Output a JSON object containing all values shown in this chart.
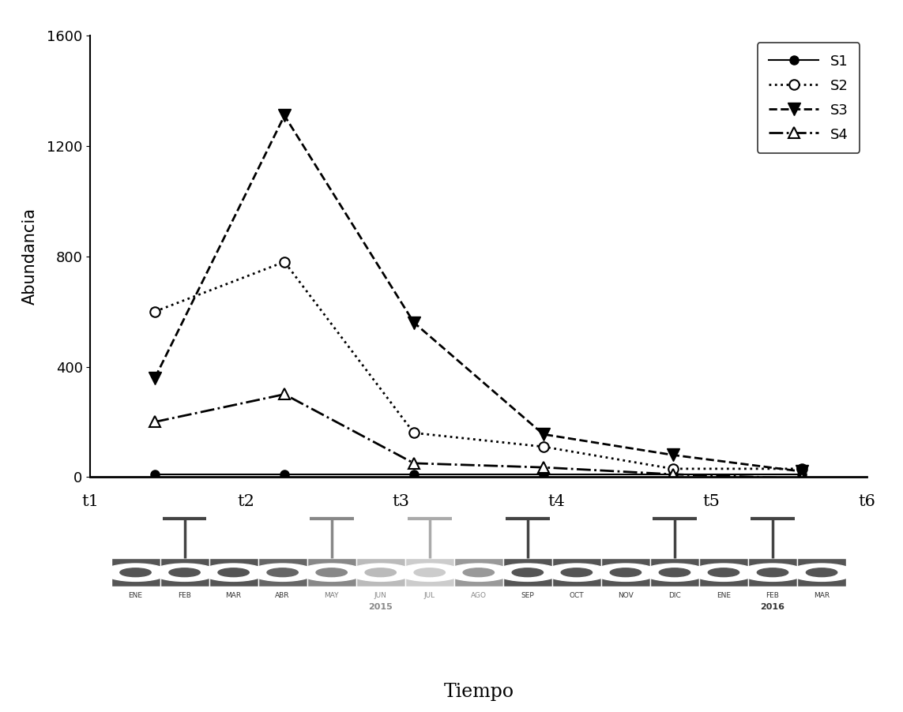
{
  "x_positions": [
    1,
    2,
    3,
    4,
    5,
    6
  ],
  "x_labels": [
    "t1",
    "t2",
    "t3",
    "t4",
    "t5",
    "t6"
  ],
  "S1": [
    10,
    10,
    10,
    10,
    10,
    10
  ],
  "S2": [
    600,
    780,
    160,
    110,
    30,
    30
  ],
  "S3": [
    360,
    1310,
    560,
    155,
    80,
    20
  ],
  "S4": [
    200,
    300,
    50,
    35,
    10,
    -5
  ],
  "ylim": [
    0,
    1600
  ],
  "yticks": [
    0,
    400,
    800,
    1200,
    1600
  ],
  "ylabel": "Abundancia",
  "xlabel": "Tiempo",
  "background_color": "#ffffff",
  "timeline_months": [
    "ENE",
    "FEB",
    "MAR",
    "ABR",
    "MAY",
    "JUN",
    "JUL",
    "AGO",
    "SEP",
    "OCT",
    "NOV",
    "DIC",
    "ENE",
    "FEB",
    "MAR"
  ],
  "timeline_year1": "2015",
  "timeline_year2": "2016",
  "t_month_indices": [
    1,
    4,
    6,
    8,
    11,
    13
  ],
  "t_bar_colors": [
    "#444444",
    "#888888",
    "#aaaaaa",
    "#444444",
    "#444444",
    "#444444"
  ],
  "segment_colors": [
    "#555555",
    "#555555",
    "#555555",
    "#666666",
    "#888888",
    "#bbbbbb",
    "#cccccc",
    "#999999",
    "#555555",
    "#555555",
    "#555555",
    "#555555",
    "#555555",
    "#555555",
    "#555555"
  ]
}
